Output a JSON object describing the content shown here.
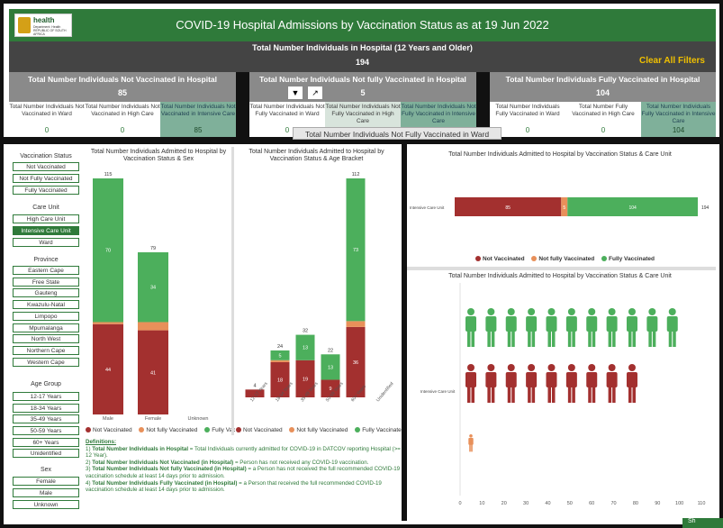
{
  "header": {
    "logo_name": "health",
    "logo_sub": "Department: Health REPUBLIC OF SOUTH AFRICA",
    "title": "COVID-19 Hospital Admissions by Vaccination Status as at 19 Jun 2022"
  },
  "total": {
    "label": "Total Number Individuals in Hospital (12 Years and Older)",
    "value": "194"
  },
  "clear_filters": "Clear All Filters",
  "groups": [
    {
      "label": "Total Number Individuals Not Vaccinated in Hospital",
      "value": "85",
      "subs": [
        {
          "label": "Total Number Individuals Not Vaccinated in Ward",
          "value": "0"
        },
        {
          "label": "Total Number Individuals Not Vaccinated in High Care",
          "value": "0"
        },
        {
          "label": "Total Number Individuals Not Vaccinated in Intensive Care",
          "value": "85"
        }
      ]
    },
    {
      "label": "Total Number Individuals Not fully Vaccinated in Hospital",
      "value": "5",
      "subs": [
        {
          "label": "Total Number Individuals Not Fully Vaccinated in Ward",
          "value": "0"
        },
        {
          "label": "Total Number Individuals Not Fully Vaccinated in High Care",
          "value": ""
        },
        {
          "label": "Total Number Individuals Not Fully Vaccinated in Intensive Care",
          "value": ""
        }
      ]
    },
    {
      "label": "Total Number Individuals Fully Vaccinated in Hospital",
      "value": "104",
      "subs": [
        {
          "label": "Total Number Individuals Fully Vaccinated in Ward",
          "value": "0"
        },
        {
          "label": "Total Number Fully Vaccinated in High Care",
          "value": "0"
        },
        {
          "label": "Total Number Individuals Fully Vaccinated in Intensive Care",
          "value": "104"
        }
      ]
    }
  ],
  "tooltip": "Total Number Individuals Not Fully Vaccinated in Ward",
  "slicers": {
    "vaccination": {
      "title": "Vaccination Status",
      "items": [
        "Not Vaccinated",
        "Not Fully Vaccinated",
        "Fully Vaccinated"
      ]
    },
    "care": {
      "title": "Care Unit",
      "items": [
        "High Care Unit",
        "Intensive Care Unit",
        "Ward"
      ]
    },
    "province": {
      "title": "Province",
      "items": [
        "Eastern Cape",
        "Free State",
        "Gauteng",
        "Kwazulu-Natal",
        "Limpopo",
        "Mpumalanga",
        "North West",
        "Northern Cape",
        "Western Cape"
      ]
    },
    "age": {
      "title": "Age Group",
      "items": [
        "12-17 Years",
        "18-34 Years",
        "35-49 Years",
        "50-59 Years",
        "60+ Years",
        "Unidentified"
      ]
    },
    "sex": {
      "title": "Sex",
      "items": [
        "Female",
        "Male",
        "Unknown"
      ]
    }
  },
  "colors": {
    "not": "#a3302f",
    "partial": "#e8905a",
    "fully": "#4caf5c",
    "green": "#2f7a3a"
  },
  "legend": {
    "not": "Not Vaccinated",
    "partial": "Not fully Vaccinated",
    "fully": "Fully Vaccinated"
  },
  "definitions": {
    "heading": "Definitions:",
    "items": [
      {
        "term": "Total Number Individuals in Hospital",
        "text": " = Total Individuals currently admitted for COVID-19 in DATCOV reporting Hospital (>= 12 Year).",
        "num": "1)"
      },
      {
        "term": "Total Number Individuals Not Vaccinated (in Hospital)",
        "text": " = Person has not received any COVID-19 vaccination.",
        "num": "2)"
      },
      {
        "term": "Total Number Individuals Not fully Vaccinated (in Hospital)",
        "text": " = a Person has not received the full recommended COVID-19 vaccination schedule at least 14 days prior to admission.",
        "num": "3)"
      },
      {
        "term": "Total Number Individuals Fully Vaccinated (in Hospital)",
        "text": " = a Person that received the full recommended COVID-19 vaccination schedule at least 14 days prior to admission.",
        "num": "4)"
      }
    ]
  },
  "chart_data": [
    {
      "type": "bar",
      "title": "Total Number Individuals Admitted to Hospital by Vaccination Status & Sex",
      "categories": [
        "Male",
        "Female",
        "Unknown"
      ],
      "totals": [
        115,
        79,
        null
      ],
      "series": [
        {
          "name": "Not Vaccinated",
          "values": [
            44,
            41,
            0
          ]
        },
        {
          "name": "Not fully Vaccinated",
          "values": [
            1,
            4,
            0
          ]
        },
        {
          "name": "Fully Vaccinated",
          "values": [
            70,
            34,
            0
          ]
        }
      ]
    },
    {
      "type": "bar",
      "title": "Total Number Individuals Admitted to Hospital by Vaccination Status & Age Bracket",
      "categories": [
        "12-17 Years",
        "18-34 Years",
        "35-49 Years",
        "50-59 Years",
        "60+ Years",
        "Unidentified"
      ],
      "totals": [
        4,
        24,
        32,
        22,
        112,
        null
      ],
      "series": [
        {
          "name": "Not Vaccinated",
          "values": [
            4,
            18,
            19,
            9,
            36,
            0
          ]
        },
        {
          "name": "Not fully Vaccinated",
          "values": [
            0,
            1,
            0,
            0,
            3,
            0
          ]
        },
        {
          "name": "Fully Vaccinated",
          "values": [
            0,
            5,
            13,
            13,
            73,
            0
          ]
        }
      ]
    },
    {
      "type": "bar",
      "orientation": "horizontal",
      "title": "Total Number Individuals Admitted to Hospital by Vaccination Status & Care Unit",
      "categories": [
        "Intensive Care Unit"
      ],
      "totals": [
        194
      ],
      "series": [
        {
          "name": "Not Vaccinated",
          "values": [
            85
          ]
        },
        {
          "name": "Not fully Vaccinated",
          "values": [
            5
          ]
        },
        {
          "name": "Fully Vaccinated",
          "values": [
            104
          ]
        }
      ]
    },
    {
      "type": "pictograph",
      "title": "Total Number Individuals Admitted to Hospital by Vaccination Status & Care Unit",
      "categories": [
        "Intensive Care Unit"
      ],
      "x_ticks": [
        "0",
        "10",
        "20",
        "30",
        "40",
        "50",
        "60",
        "70",
        "80",
        "90",
        "100",
        "110"
      ],
      "series": [
        {
          "name": "Fully Vaccinated",
          "values": [
            104
          ]
        },
        {
          "name": "Not Vaccinated",
          "values": [
            85
          ]
        },
        {
          "name": "Not fully Vaccinated",
          "values": [
            5
          ]
        }
      ]
    }
  ]
}
